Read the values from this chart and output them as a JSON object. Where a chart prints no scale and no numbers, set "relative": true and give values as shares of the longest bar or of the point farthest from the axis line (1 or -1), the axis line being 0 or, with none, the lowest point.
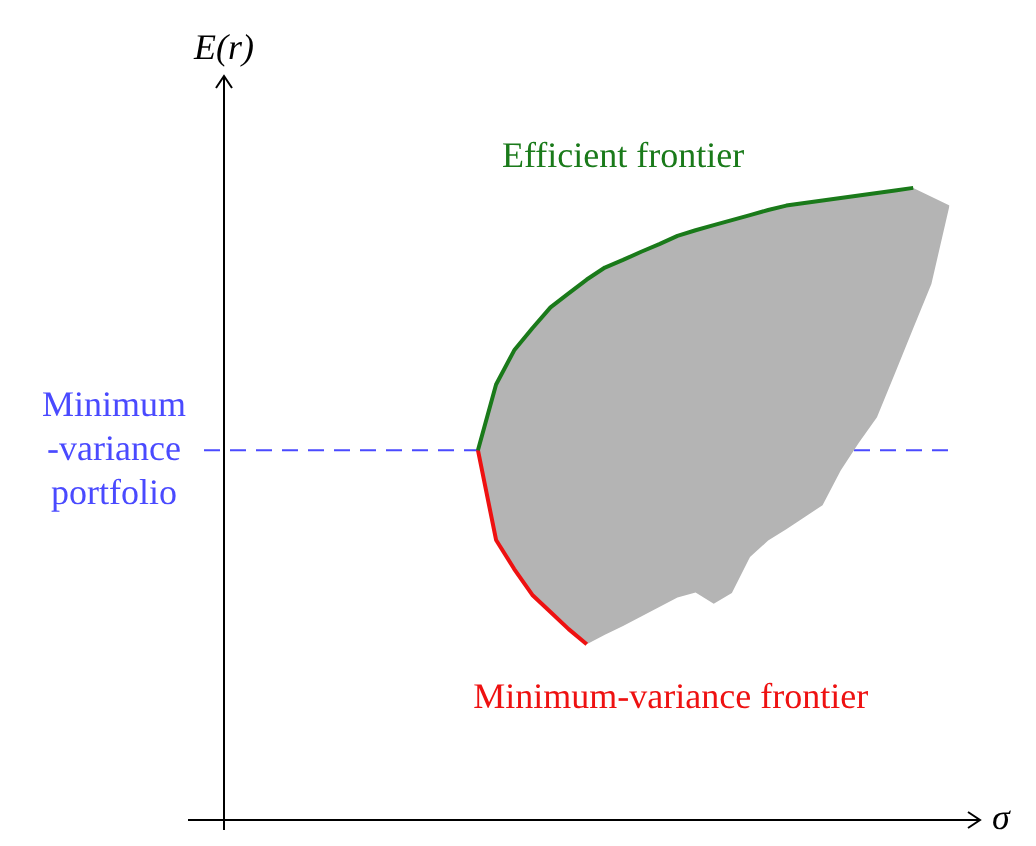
{
  "chart_data": {
    "type": "line",
    "relative": true,
    "xlabel": "σ",
    "ylabel": "E(r)",
    "legend": false,
    "marker": "none",
    "categories": [
      null,
      null,
      null,
      null,
      null,
      null,
      null,
      null,
      null,
      null,
      null,
      null,
      null,
      null,
      null,
      null,
      null,
      null,
      null,
      null,
      null,
      null,
      null,
      null,
      null,
      null,
      null,
      null,
      null,
      null,
      null,
      null,
      null,
      null,
      null,
      null,
      null,
      null,
      null,
      null,
      null
    ],
    "series": [
      {
        "name": "Efficient frontier",
        "color": "#1a7a1a",
        "values": [
          null,
          null,
          null,
          null,
          null,
          null,
          null,
          null,
          null,
          null,
          null,
          null,
          null,
          null,
          0.585,
          0.689,
          0.743,
          0.778,
          0.811,
          0.833,
          0.855,
          0.874,
          0.886,
          0.899,
          0.911,
          0.924,
          0.933,
          0.941,
          0.949,
          0.957,
          0.965,
          0.972,
          0.976,
          0.98,
          0.984,
          0.988,
          0.992,
          0.996,
          1.0,
          null,
          null
        ],
        "upper": [
          null,
          null,
          null,
          null,
          null,
          null,
          null,
          null,
          null,
          null,
          null,
          null,
          null,
          null,
          0.585,
          0.689,
          0.743,
          0.778,
          0.811,
          0.833,
          0.855,
          0.874,
          0.886,
          0.899,
          0.911,
          0.924,
          0.933,
          0.941,
          0.949,
          0.957,
          0.965,
          0.972,
          0.976,
          0.98,
          0.984,
          0.988,
          0.992,
          0.996,
          1.0,
          0.986,
          0.972
        ],
        "lower": [
          null,
          null,
          null,
          null,
          null,
          null,
          null,
          null,
          null,
          null,
          null,
          null,
          null,
          null,
          0.585,
          0.443,
          0.397,
          0.356,
          0.329,
          0.302,
          0.278,
          0.293,
          0.307,
          0.322,
          0.337,
          0.352,
          0.36,
          0.342,
          0.359,
          0.416,
          0.442,
          0.46,
          0.479,
          0.498,
          0.553,
          0.597,
          0.637,
          0.707,
          0.778,
          0.848,
          0.972
        ]
      },
      {
        "name": "Minimum-variance frontier",
        "color": "#ee1111",
        "values": [
          null,
          null,
          null,
          null,
          null,
          null,
          null,
          null,
          null,
          null,
          null,
          null,
          null,
          null,
          0.585,
          0.443,
          0.397,
          0.356,
          0.329,
          0.302,
          0.278,
          null,
          null,
          null,
          null,
          null,
          null,
          null,
          null,
          null,
          null,
          null,
          null,
          null,
          null,
          null,
          null,
          null,
          null,
          null,
          null
        ]
      }
    ],
    "ref_lines": [
      {
        "axis": "y",
        "value": 0.585,
        "label": "Minimum\n-variance\nportfolio",
        "color": "#4a4aff",
        "line_style": "dashed"
      }
    ]
  }
}
